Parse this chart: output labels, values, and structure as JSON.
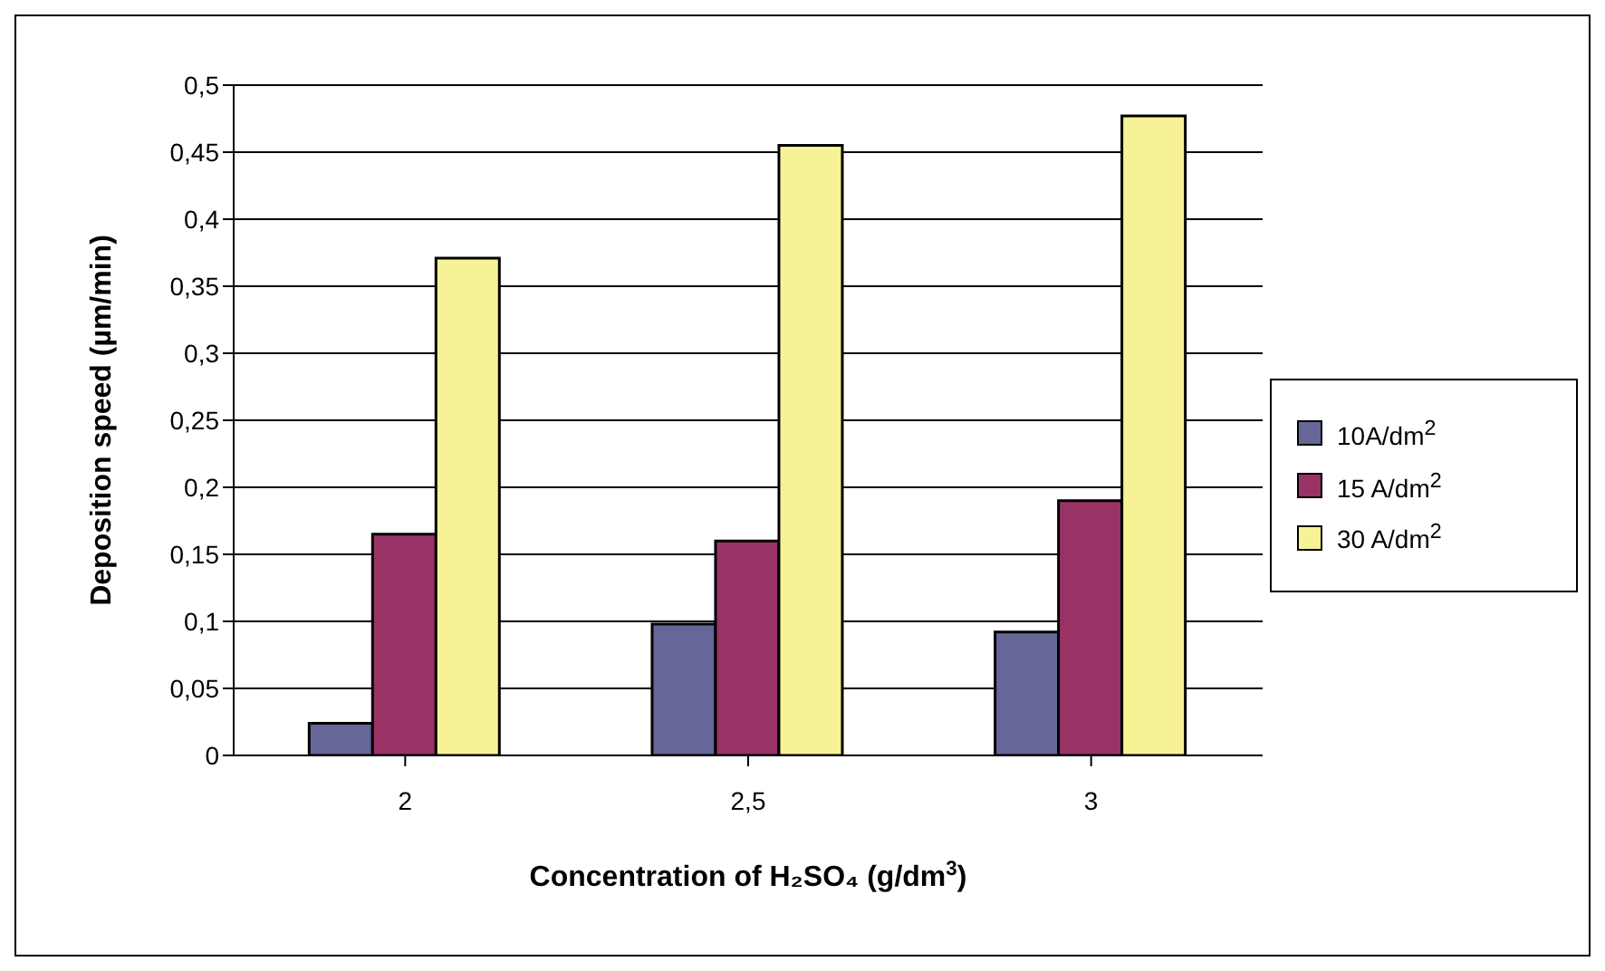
{
  "chart_data": {
    "type": "bar",
    "xlabel": "Concentration of H₂SO₄ (g/dm$^{3}$)",
    "ylabel": "Deposition speed (µm/min)",
    "categories": [
      "2",
      "2,5",
      "3"
    ],
    "series": [
      {
        "name": "10A/dm$^{2}$",
        "color": "#666699",
        "values": [
          0.024,
          0.098,
          0.092
        ]
      },
      {
        "name": "15 A/dm$^{2}$",
        "color": "#993366",
        "values": [
          0.165,
          0.16,
          0.19
        ]
      },
      {
        "name": "30 A/dm$^{2}$",
        "color": "#f8f297",
        "values": [
          0.371,
          0.455,
          0.477
        ]
      }
    ],
    "ylim": [
      0,
      0.5
    ],
    "yticks": [
      0,
      {
        "value": 0.05,
        "label": "0,05"
      },
      {
        "value": 0.1,
        "label": "0,1"
      },
      {
        "value": 0.15,
        "label": "0,15"
      },
      {
        "value": 0.2,
        "label": "0,2"
      },
      {
        "value": 0.25,
        "label": "0,25"
      },
      {
        "value": 0.3,
        "label": "0,3"
      },
      {
        "value": 0.35,
        "label": "0,35"
      },
      {
        "value": 0.4,
        "label": "0,4"
      },
      {
        "value": 0.45,
        "label": "0,45"
      },
      {
        "value": 0.5,
        "label": "0,5"
      }
    ],
    "grid": "y",
    "legend": "right"
  }
}
